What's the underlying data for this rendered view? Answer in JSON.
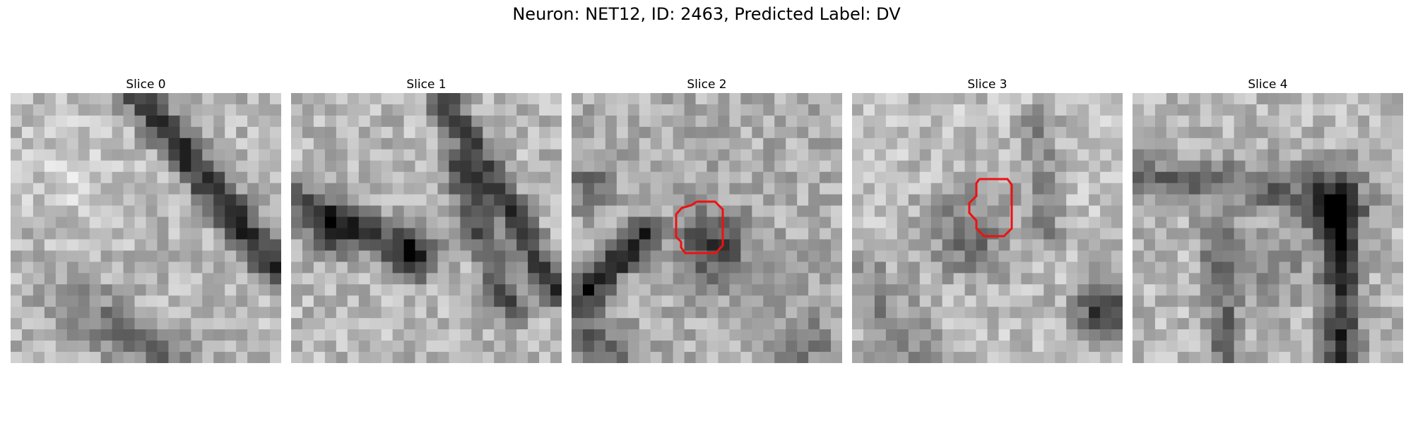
{
  "figure": {
    "suptitle": "Neuron: NET12, ID: 2463, Predicted Label: DV"
  },
  "panels": [
    {
      "title": "Slice 0",
      "has_outline": false,
      "image_desc": "grayscale EM patch, dark diagonal membrane band from top-center to right"
    },
    {
      "title": "Slice 1",
      "has_outline": false,
      "image_desc": "grayscale EM patch, dark diagonal bands with dark blobs on left"
    },
    {
      "title": "Slice 2",
      "has_outline": true,
      "image_desc": "grayscale EM patch, dark cell body in center, dark streak lower-left"
    },
    {
      "title": "Slice 3",
      "has_outline": true,
      "image_desc": "grayscale EM patch, light background, dark region center-left, dark corner bottom-right"
    },
    {
      "title": "Slice 4",
      "has_outline": false,
      "image_desc": "grayscale EM patch, dark vertical band right side, dark blob upper-right"
    }
  ],
  "style": {
    "outline_color": "#ee1111"
  }
}
